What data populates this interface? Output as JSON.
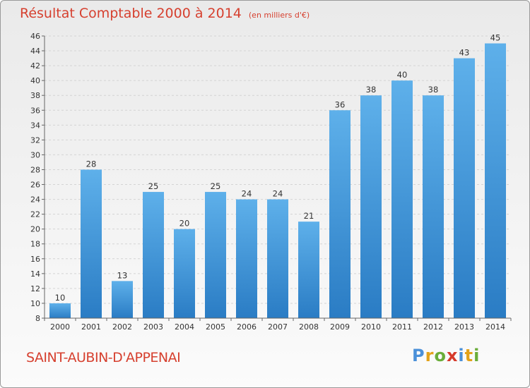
{
  "chart_data": {
    "type": "bar",
    "title": "Résultat Comptable 2000 à 2014",
    "subtitle": "(en milliers d'€)",
    "categories": [
      "2000",
      "2001",
      "2002",
      "2003",
      "2004",
      "2005",
      "2006",
      "2007",
      "2008",
      "2009",
      "2010",
      "2011",
      "2012",
      "2013",
      "2014"
    ],
    "values": [
      10,
      28,
      13,
      25,
      20,
      25,
      24,
      24,
      21,
      36,
      38,
      40,
      38,
      43,
      45
    ],
    "ylim": [
      8,
      46
    ],
    "yticks": [
      8,
      10,
      12,
      14,
      16,
      18,
      20,
      22,
      24,
      26,
      28,
      30,
      32,
      34,
      36,
      38,
      40,
      42,
      44,
      46
    ],
    "grid": true,
    "bar_color": "#3a8fd4",
    "xlabel": "",
    "ylabel": ""
  },
  "footer": {
    "commune": "SAINT-AUBIN-D'APPENAI",
    "logo_letters": [
      "P",
      "r",
      "o",
      "x",
      "i",
      "t",
      "i"
    ],
    "logo_colors": [
      "#4a90d9",
      "#e3a21a",
      "#6aad3a",
      "#d63a2a",
      "#4a90d9",
      "#e3a21a",
      "#6aad3a"
    ]
  },
  "colors": {
    "title": "#d6402f",
    "bar": "#3a8fd4"
  }
}
